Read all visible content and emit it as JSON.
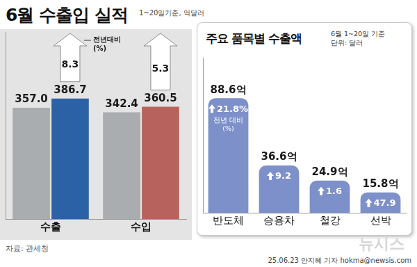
{
  "chart_data": [
    {
      "type": "bar",
      "title": "6월 수출입 실적",
      "subtitle": "1~20일기준, 억달러",
      "categories": [
        "수출",
        "수입"
      ],
      "series": [
        {
          "color": "#a9adaf",
          "values": [
            357.0,
            342.4
          ],
          "value_labels": [
            "357.0",
            "342.4"
          ]
        },
        {
          "colors": [
            "#2b62a6",
            "#b8625d"
          ],
          "values": [
            386.7,
            360.5
          ],
          "value_labels": [
            "386.7",
            "360.5"
          ]
        }
      ],
      "change": [
        8.3,
        5.3
      ],
      "change_label": "전년대비 (%)",
      "ylim": [
        0,
        600
      ],
      "yticks": [
        0,
        600
      ],
      "tick_labels": "x",
      "grid": false,
      "data_labels": true
    },
    {
      "type": "bar",
      "title": "주요 품목별 수출액",
      "subtitle": "6월 1~20일 기준",
      "unit_label": "단위: 달러",
      "categories": [
        "반도체",
        "승용차",
        "철강",
        "선박"
      ],
      "values": [
        88.6,
        36.6,
        24.9,
        15.8
      ],
      "value_labels": [
        "88.6억",
        "36.6억",
        "24.9억",
        "15.8억"
      ],
      "color": "#7d90c9",
      "change": [
        21.8,
        9.2,
        1.6,
        47.9
      ],
      "change_labels": [
        "21.8%",
        "9.2",
        "1.6",
        "47.9"
      ],
      "change_label": "전년 대비 (%)",
      "ylim": [
        0,
        120
      ],
      "yticks": [
        0,
        120
      ],
      "tick_labels": "x",
      "grid": false,
      "data_labels": true
    }
  ],
  "source": "자료: 관세청",
  "credit": "25.06.23 안지혜 기자 hokma@newsis.com",
  "watermark": "뉴시스"
}
